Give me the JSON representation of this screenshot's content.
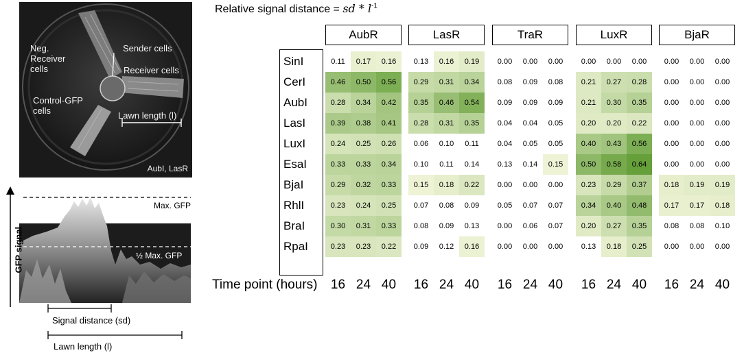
{
  "photo": {
    "labels": {
      "neg_receiver": "Neg.\nReceiver\ncells",
      "sender": "Sender cells",
      "receiver": "Receiver cells",
      "control": "Control-GFP\ncells",
      "lawn": "Lawn length (l)",
      "corner": "AubI, LasR"
    }
  },
  "plot": {
    "y_label": "GFP signal",
    "max_label": "Max. GFP",
    "half_label": "½ Max. GFP",
    "signal_distance_label": "Signal distance (sd)",
    "lawn_length_label": "Lawn length (l)"
  },
  "formula": {
    "prefix": "Relative signal distance = ",
    "math": "sd * l",
    "exponent": "-1"
  },
  "table": {
    "receivers": [
      "AubR",
      "LasR",
      "TraR",
      "LuxR",
      "BjaR"
    ],
    "senders": [
      "SinI",
      "CerI",
      "AubI",
      "LasI",
      "LuxI",
      "EsaI",
      "BjaI",
      "RhlI",
      "BraI",
      "RpaI"
    ],
    "time_label": "Time point (hours)",
    "time_points": [
      "16",
      "24",
      "40"
    ],
    "values": [
      [
        [
          0.11,
          0.17,
          0.16
        ],
        [
          0.13,
          0.16,
          0.19
        ],
        [
          0.0,
          0.0,
          0.0
        ],
        [
          0.0,
          0.0,
          0.0
        ],
        [
          0.0,
          0.0,
          0.0
        ]
      ],
      [
        [
          0.46,
          0.5,
          0.56
        ],
        [
          0.29,
          0.31,
          0.34
        ],
        [
          0.08,
          0.09,
          0.08
        ],
        [
          0.21,
          0.27,
          0.28
        ],
        [
          0.0,
          0.0,
          0.0
        ]
      ],
      [
        [
          0.28,
          0.34,
          0.42
        ],
        [
          0.35,
          0.46,
          0.54
        ],
        [
          0.09,
          0.09,
          0.09
        ],
        [
          0.21,
          0.3,
          0.35
        ],
        [
          0.0,
          0.0,
          0.0
        ]
      ],
      [
        [
          0.39,
          0.38,
          0.41
        ],
        [
          0.28,
          0.31,
          0.35
        ],
        [
          0.04,
          0.04,
          0.05
        ],
        [
          0.2,
          0.2,
          0.22
        ],
        [
          0.0,
          0.0,
          0.0
        ]
      ],
      [
        [
          0.24,
          0.25,
          0.26
        ],
        [
          0.06,
          0.1,
          0.11
        ],
        [
          0.04,
          0.05,
          0.05
        ],
        [
          0.4,
          0.43,
          0.56
        ],
        [
          0.0,
          0.0,
          0.0
        ]
      ],
      [
        [
          0.33,
          0.33,
          0.34
        ],
        [
          0.1,
          0.11,
          0.14
        ],
        [
          0.13,
          0.14,
          0.15
        ],
        [
          0.5,
          0.58,
          0.64
        ],
        [
          0.0,
          0.0,
          0.0
        ]
      ],
      [
        [
          0.29,
          0.32,
          0.33
        ],
        [
          0.15,
          0.18,
          0.22
        ],
        [
          0.0,
          0.0,
          0.0
        ],
        [
          0.23,
          0.29,
          0.37
        ],
        [
          0.18,
          0.19,
          0.19
        ]
      ],
      [
        [
          0.23,
          0.24,
          0.25
        ],
        [
          0.07,
          0.08,
          0.09
        ],
        [
          0.05,
          0.07,
          0.07
        ],
        [
          0.34,
          0.4,
          0.48
        ],
        [
          0.17,
          0.17,
          0.18
        ]
      ],
      [
        [
          0.3,
          0.31,
          0.33
        ],
        [
          0.08,
          0.09,
          0.13
        ],
        [
          0.0,
          0.06,
          0.07
        ],
        [
          0.2,
          0.27,
          0.35
        ],
        [
          0.08,
          0.08,
          0.1
        ]
      ],
      [
        [
          0.23,
          0.23,
          0.22
        ],
        [
          0.09,
          0.12,
          0.16
        ],
        [
          0.0,
          0.0,
          0.0
        ],
        [
          0.13,
          0.18,
          0.25
        ],
        [
          0.0,
          0.0,
          0.0
        ]
      ]
    ],
    "color_low": "#eef3d6",
    "color_high": "#66a03a",
    "threshold": 0.15
  }
}
